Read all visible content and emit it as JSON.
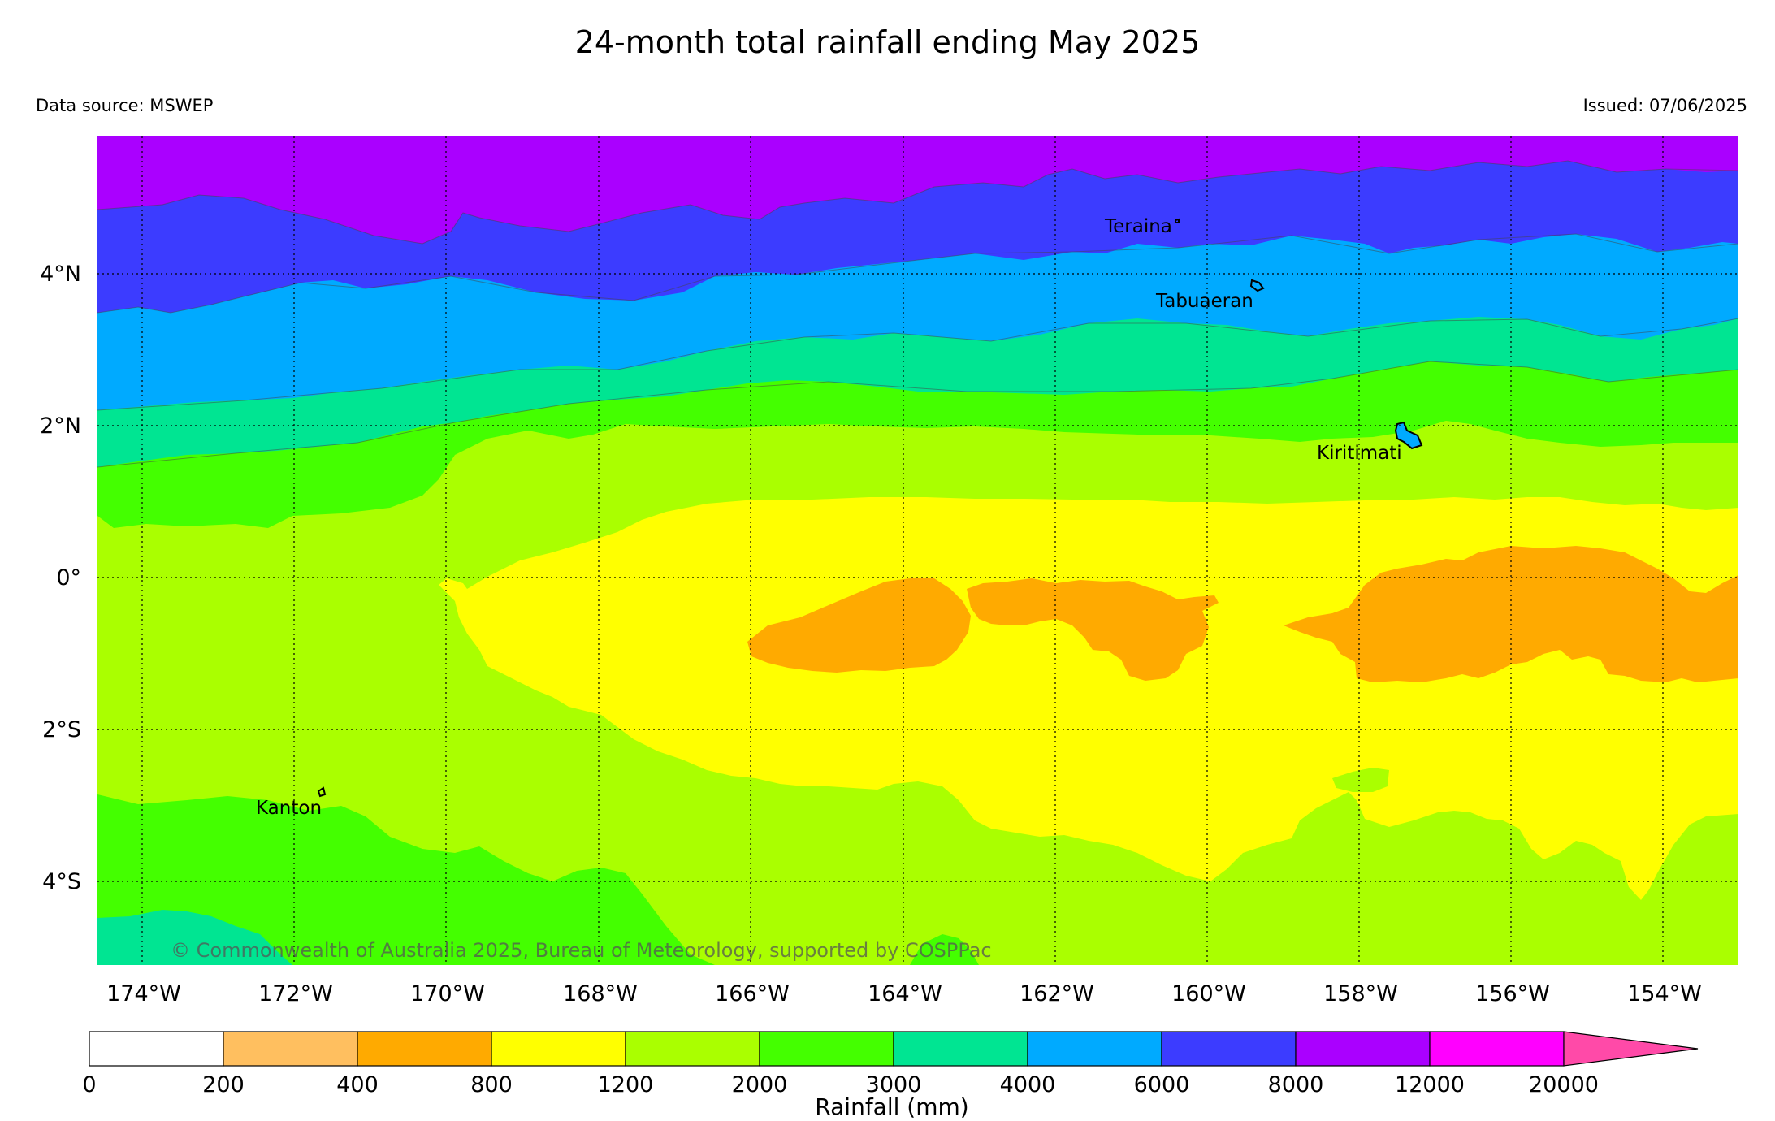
{
  "title": "24-month total rainfall ending May 2025",
  "data_source": "Data source: MSWEP",
  "issued": "Issued: 07/06/2025",
  "copyright": "© Commonwealth of Australia 2025, Bureau of Meteorology, supported by COSPPac",
  "map": {
    "lon_ticks": [
      "174°W",
      "172°W",
      "170°W",
      "168°W",
      "166°W",
      "164°W",
      "162°W",
      "160°W",
      "158°W",
      "156°W",
      "154°W"
    ],
    "lat_ticks": [
      "4°N",
      "2°N",
      "0°",
      "2°S",
      "4°S"
    ],
    "places": [
      "Teraina",
      "Tabuaeran",
      "Kiritimati",
      "Kanton"
    ]
  },
  "legend": {
    "title": "Rainfall (mm)",
    "labels": [
      "0",
      "200",
      "400",
      "800",
      "1200",
      "2000",
      "3000",
      "4000",
      "6000",
      "8000",
      "12000",
      "20000"
    ],
    "colors": [
      "#ffffff",
      "#ffbf5f",
      "#ffaa00",
      "#ffff00",
      "#aaff00",
      "#44ff00",
      "#00e592",
      "#00aaff",
      "#3c3cff",
      "#aa00ff",
      "#ff00ff",
      "#ff4aa8"
    ]
  }
}
